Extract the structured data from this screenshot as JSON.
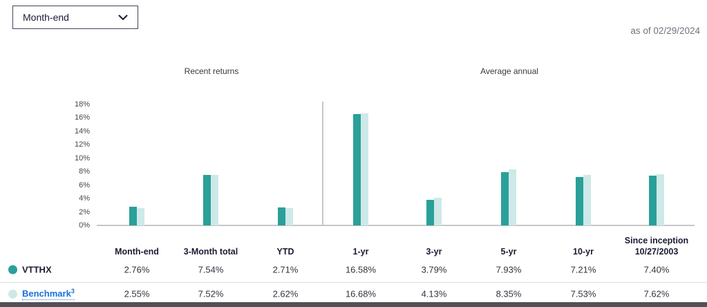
{
  "header": {
    "period_dropdown": {
      "value": "Month-end"
    },
    "as_of": "as of 02/29/2024"
  },
  "chart": {
    "section_labels": {
      "recent": "Recent returns",
      "average": "Average annual"
    }
  },
  "chart_data": {
    "type": "bar",
    "categories": [
      "Month-end",
      "3-Month total",
      "YTD",
      "1-yr",
      "3-yr",
      "5-yr",
      "10-yr",
      "Since inception 10/27/2003"
    ],
    "series": [
      {
        "name": "VTTHX",
        "color": "#29a099",
        "values": [
          2.76,
          7.54,
          2.71,
          16.58,
          3.79,
          7.93,
          7.21,
          7.4
        ]
      },
      {
        "name": "Benchmark",
        "color": "#cde9e8",
        "values": [
          2.55,
          7.52,
          2.62,
          16.68,
          4.13,
          8.35,
          7.53,
          7.62
        ]
      }
    ],
    "ylim": [
      0,
      18
    ],
    "y_tick_step": 2,
    "y_tick_labels": [
      "0%",
      "2%",
      "4%",
      "6%",
      "8%",
      "10%",
      "12%",
      "14%",
      "16%",
      "18%"
    ],
    "grid": false,
    "legend_position": "table-left",
    "sections": [
      {
        "label": "Recent returns",
        "columns": [
          0,
          1,
          2
        ]
      },
      {
        "label": "Average annual",
        "columns": [
          3,
          4,
          5,
          6,
          7
        ]
      }
    ]
  },
  "table": {
    "columns": [
      {
        "line1": "Month-end",
        "line2": ""
      },
      {
        "line1": "3-Month total",
        "line2": ""
      },
      {
        "line1": "YTD",
        "line2": ""
      },
      {
        "line1": "1-yr",
        "line2": ""
      },
      {
        "line1": "3-yr",
        "line2": ""
      },
      {
        "line1": "5-yr",
        "line2": ""
      },
      {
        "line1": "10-yr",
        "line2": ""
      },
      {
        "line1": "Since inception",
        "line2": "10/27/2003"
      }
    ],
    "rows": [
      {
        "label": "VTTHX",
        "superscript": "",
        "dot_color": "#29a099",
        "values": [
          "2.76%",
          "7.54%",
          "2.71%",
          "16.58%",
          "3.79%",
          "7.93%",
          "7.21%",
          "7.40%"
        ]
      },
      {
        "label": "Benchmark",
        "superscript": "3",
        "dot_color": "#cde9e8",
        "values": [
          "2.55%",
          "7.52%",
          "2.62%",
          "16.68%",
          "4.13%",
          "8.35%",
          "7.53%",
          "7.62%"
        ]
      }
    ]
  }
}
